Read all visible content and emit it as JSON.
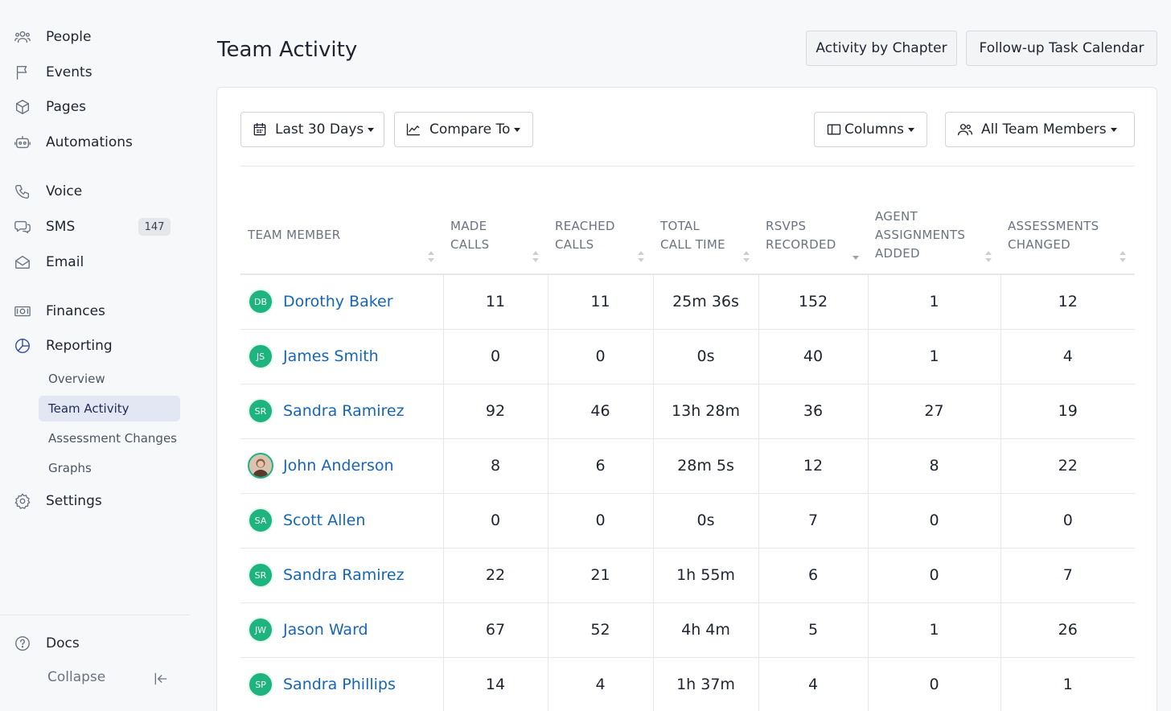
{
  "sidebar": {
    "nav": [
      {
        "label": "People",
        "icon": "people-icon"
      },
      {
        "label": "Events",
        "icon": "flag-icon"
      },
      {
        "label": "Pages",
        "icon": "cube-icon"
      },
      {
        "label": "Automations",
        "icon": "robot-icon"
      },
      {
        "label": "Voice",
        "icon": "phone-icon"
      },
      {
        "label": "SMS",
        "icon": "chat-icon",
        "badge": "147"
      },
      {
        "label": "Email",
        "icon": "envelope-icon"
      },
      {
        "label": "Finances",
        "icon": "cash-icon"
      },
      {
        "label": "Reporting",
        "icon": "pie-chart-icon"
      },
      {
        "label": "Settings",
        "icon": "gear-icon"
      }
    ],
    "reporting_sub": [
      "Overview",
      "Team Activity",
      "Assessment Changes",
      "Graphs"
    ],
    "active_sub": "Team Activity",
    "docs": "Docs",
    "collapse": "Collapse"
  },
  "header": {
    "title": "Team Activity",
    "buttons": [
      "Activity by Chapter",
      "Follow-up Task Calendar"
    ]
  },
  "toolbar": {
    "date_range": "Last 30 Days",
    "compare": "Compare To",
    "columns": "Columns",
    "members": "All Team Members"
  },
  "table": {
    "headers": [
      "TEAM MEMBER",
      "MADE CALLS",
      "REACHED CALLS",
      "TOTAL CALL TIME",
      "RSVPS RECORDED",
      "AGENT ASSIGNMENTS ADDED",
      "ASSESSMENTS CHANGED"
    ],
    "sorted_column": "RSVPS RECORDED",
    "rows": [
      {
        "initials": "DB",
        "name": "Dorothy Baker",
        "made": "11",
        "reached": "11",
        "time": "25m 36s",
        "rsvps": "152",
        "agents": "1",
        "assess": "12"
      },
      {
        "initials": "JS",
        "name": "James Smith",
        "made": "0",
        "reached": "0",
        "time": "0s",
        "rsvps": "40",
        "agents": "1",
        "assess": "4"
      },
      {
        "initials": "SR",
        "name": "Sandra Ramirez",
        "made": "92",
        "reached": "46",
        "time": "13h 28m",
        "rsvps": "36",
        "agents": "27",
        "assess": "19"
      },
      {
        "initials": "",
        "name": "John Anderson",
        "made": "8",
        "reached": "6",
        "time": "28m 5s",
        "rsvps": "12",
        "agents": "8",
        "assess": "22"
      },
      {
        "initials": "SA",
        "name": "Scott Allen",
        "made": "0",
        "reached": "0",
        "time": "0s",
        "rsvps": "7",
        "agents": "0",
        "assess": "0"
      },
      {
        "initials": "SR",
        "name": "Sandra Ramirez",
        "made": "22",
        "reached": "21",
        "time": "1h 55m",
        "rsvps": "6",
        "agents": "0",
        "assess": "7"
      },
      {
        "initials": "JW",
        "name": "Jason Ward",
        "made": "67",
        "reached": "52",
        "time": "4h 4m",
        "rsvps": "5",
        "agents": "1",
        "assess": "26"
      },
      {
        "initials": "SP",
        "name": "Sandra Phillips",
        "made": "14",
        "reached": "4",
        "time": "1h 37m",
        "rsvps": "4",
        "agents": "0",
        "assess": "1"
      }
    ]
  }
}
